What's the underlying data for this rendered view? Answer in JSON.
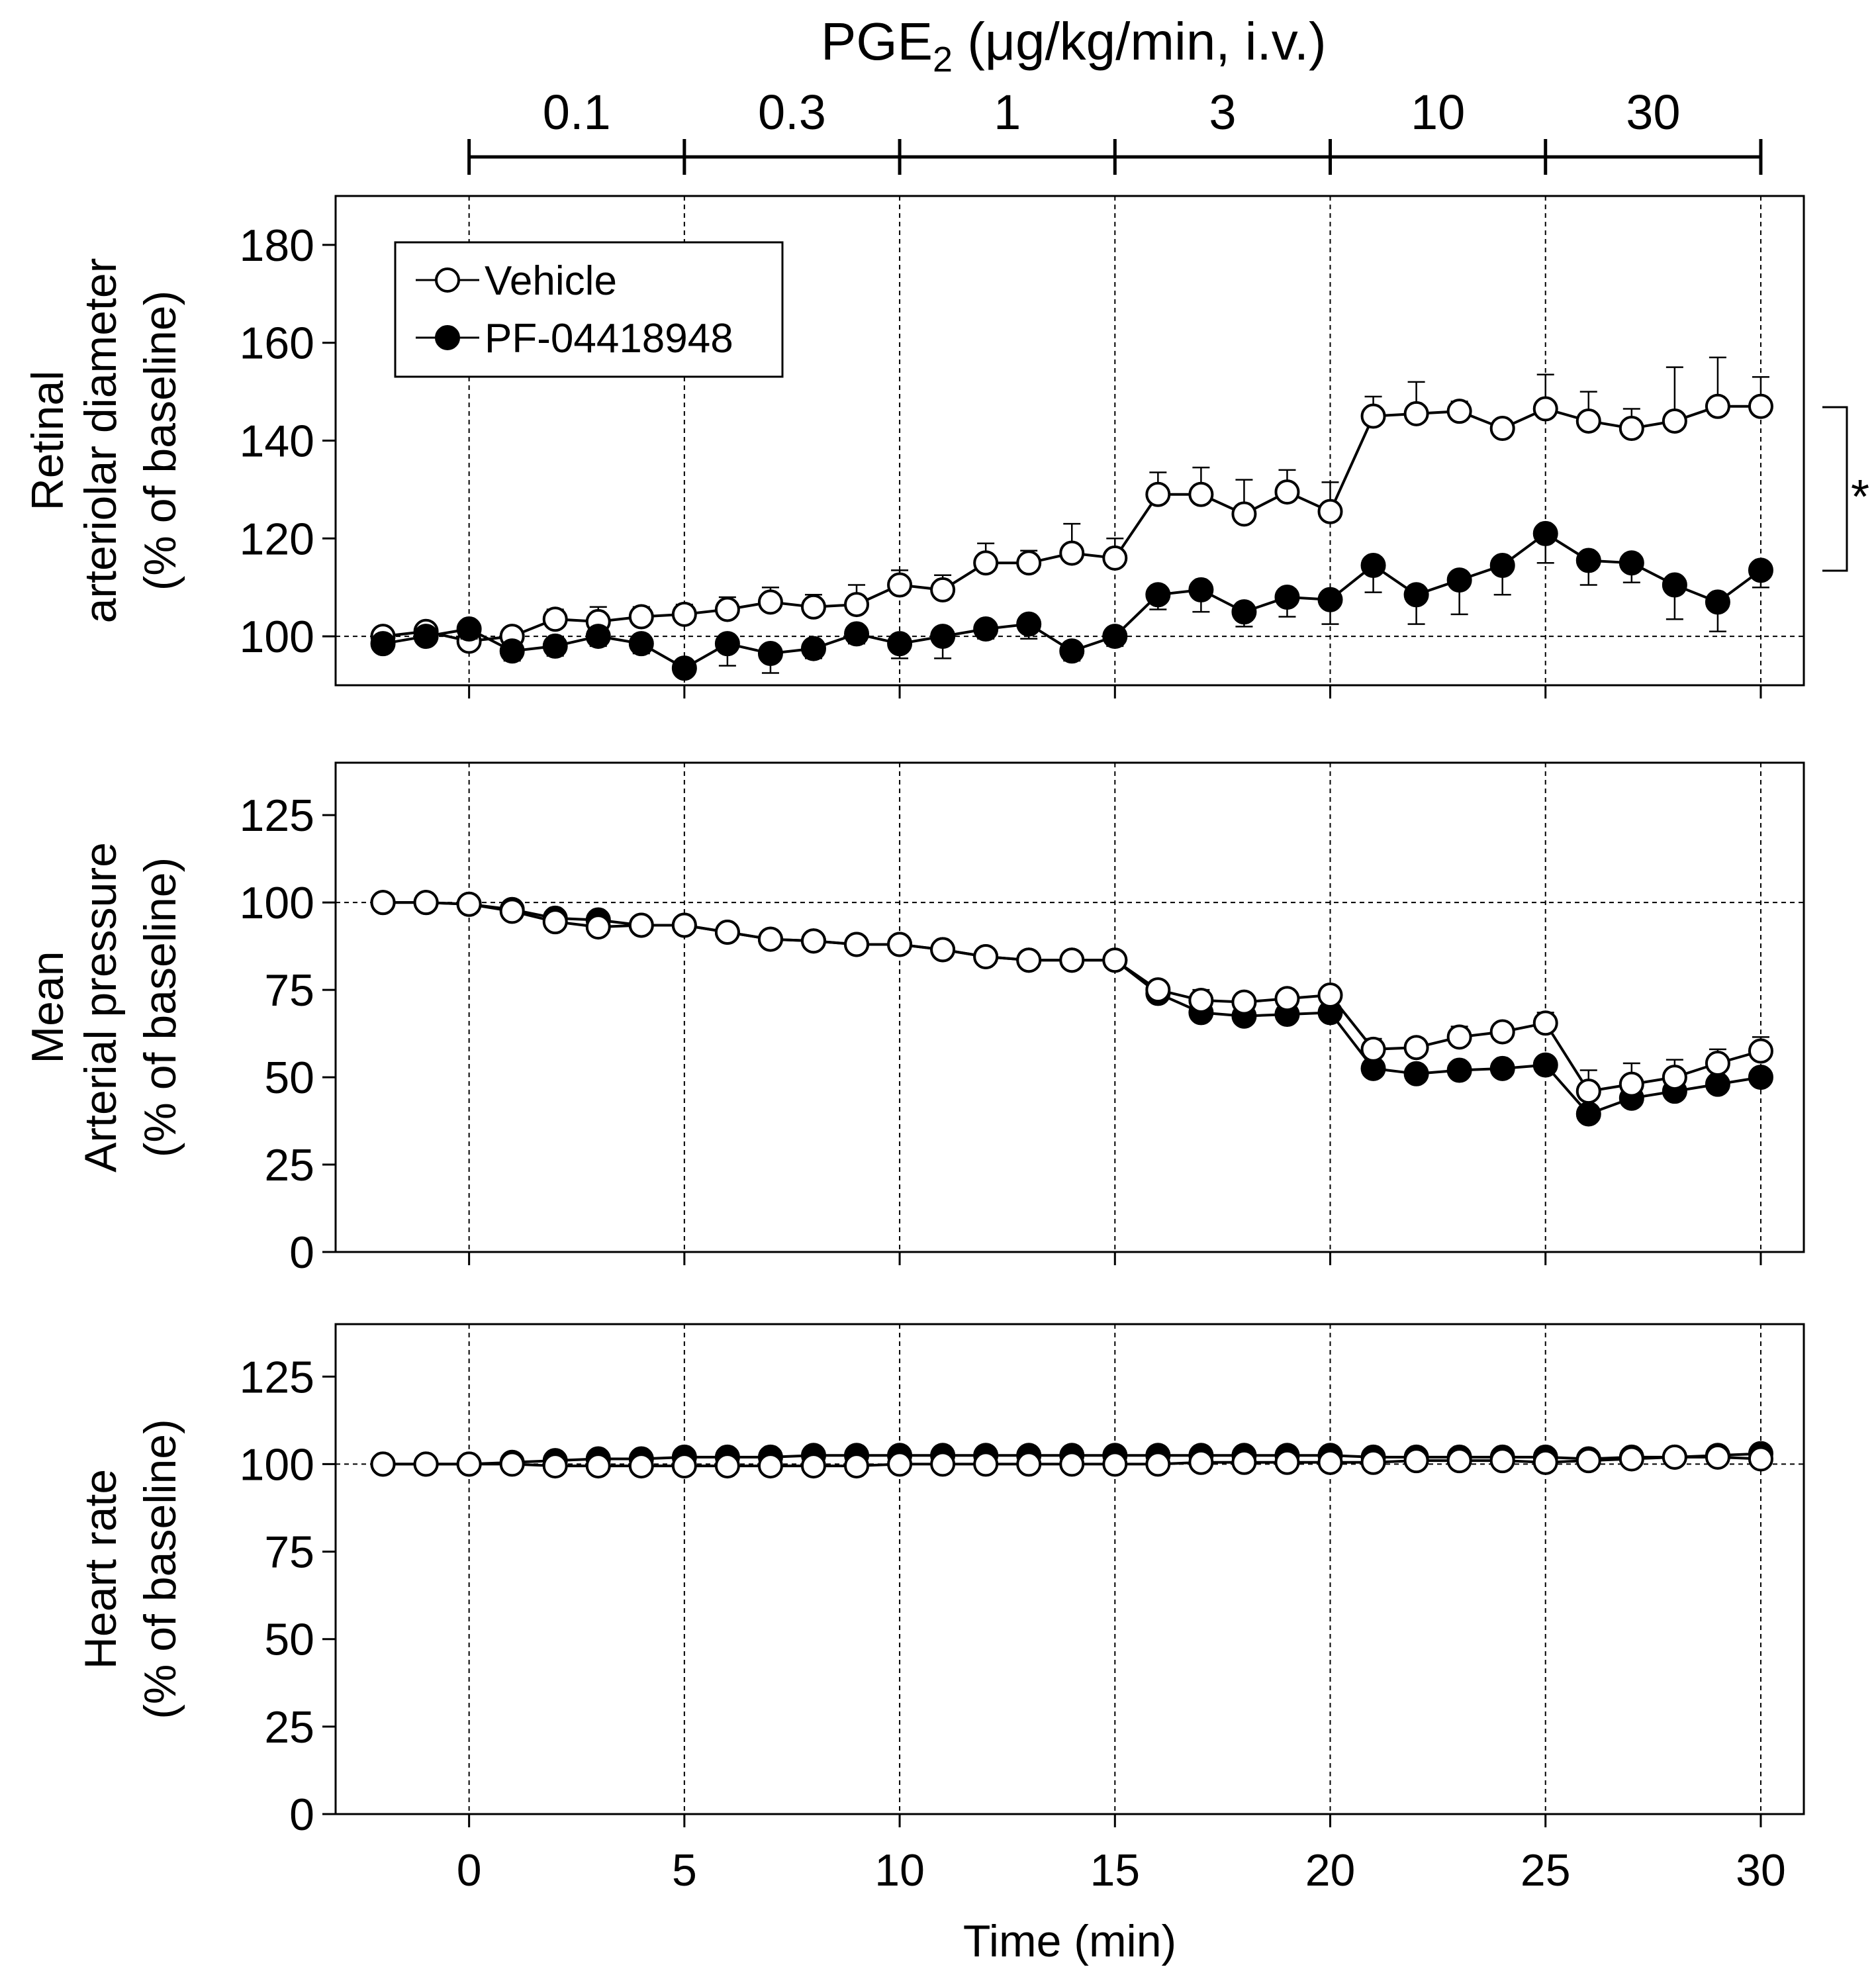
{
  "dose_bar": {
    "title_main": "PGE",
    "title_sub": "2",
    "title_rest": " (μg/kg/min, i.v.)",
    "doses": [
      "0.1",
      "0.3",
      "1",
      "3",
      "10",
      "30"
    ],
    "dose_start_times": [
      0,
      5,
      10,
      15,
      20,
      25,
      30
    ]
  },
  "legend": {
    "vehicle": "Vehicle",
    "pf": "PF-04418948"
  },
  "significance": "*",
  "x_axis": {
    "label": "Time (min)",
    "ticks": [
      0,
      5,
      10,
      15,
      20,
      25,
      30
    ],
    "range": [
      -3.1,
      31
    ]
  },
  "chart_data": [
    {
      "type": "line",
      "title": "Retinal arteriolar diameter",
      "ylabel_lines": [
        "Retinal",
        "arteriolar diameter",
        "(% of baseline)"
      ],
      "ylim": [
        90,
        190
      ],
      "yticks": [
        100,
        120,
        140,
        160,
        180
      ],
      "baseline": 100,
      "x": [
        -2,
        -1,
        0,
        1,
        2,
        3,
        4,
        5,
        6,
        7,
        8,
        9,
        10,
        11,
        12,
        13,
        14,
        15,
        16,
        17,
        18,
        19,
        20,
        21,
        22,
        23,
        24,
        25,
        26,
        27,
        28,
        29,
        30
      ],
      "series": [
        {
          "name": "Vehicle",
          "marker": "open",
          "values": [
            100,
            101,
            99,
            100,
            103.5,
            103,
            104,
            104.5,
            105.5,
            107,
            106,
            106.5,
            110.5,
            109.5,
            115,
            115,
            117,
            116,
            129,
            129,
            125,
            129.5,
            125.5,
            145,
            145.5,
            146,
            142.5,
            146.5,
            144,
            142.5,
            144,
            147,
            147
          ],
          "errors": [
            1,
            1,
            1.5,
            1.5,
            2,
            3,
            2,
            2,
            2.5,
            3,
            2.5,
            4,
            3,
            3,
            4,
            2.5,
            6,
            4,
            4.5,
            5.5,
            7,
            4.5,
            6,
            4,
            6.5,
            2,
            1.5,
            7,
            6,
            4,
            11,
            10,
            6
          ]
        },
        {
          "name": "PF-04418948",
          "marker": "filled",
          "values": [
            98.5,
            100,
            101.5,
            97,
            98,
            100,
            98.5,
            93.5,
            98.5,
            96.5,
            97.5,
            100.5,
            98.5,
            100,
            101.5,
            102.5,
            97,
            100,
            108.5,
            109.5,
            105,
            108,
            107.5,
            114.5,
            108.5,
            111.5,
            114.5,
            121,
            115.5,
            115,
            110.5,
            107,
            113.5
          ],
          "errors": [
            1.5,
            1,
            2,
            2,
            2,
            2,
            2,
            1.5,
            4.5,
            4,
            2,
            2,
            3,
            4.5,
            2,
            3,
            2,
            2,
            3,
            4.5,
            3,
            4,
            5,
            5.5,
            6,
            7,
            6,
            6,
            5,
            4,
            7,
            6,
            3.5
          ]
        }
      ]
    },
    {
      "type": "line",
      "title": "Mean Arterial pressure",
      "ylabel_lines": [
        "Mean",
        "Arterial pressure",
        "(% of baseline)"
      ],
      "ylim": [
        0,
        140
      ],
      "yticks": [
        0,
        25,
        50,
        75,
        100,
        125
      ],
      "baseline": 100,
      "x": [
        -2,
        -1,
        0,
        1,
        2,
        3,
        4,
        5,
        6,
        7,
        8,
        9,
        10,
        11,
        12,
        13,
        14,
        15,
        16,
        17,
        18,
        19,
        20,
        21,
        22,
        23,
        24,
        25,
        26,
        27,
        28,
        29,
        30
      ],
      "series": [
        {
          "name": "PF-04418948",
          "marker": "filled",
          "values": [
            100,
            100,
            99.5,
            98,
            95.5,
            95,
            93.5,
            93.5,
            91.5,
            89.5,
            89,
            88,
            88,
            86.5,
            84.5,
            83.5,
            83.5,
            83.5,
            74,
            68.5,
            67.5,
            68,
            68.5,
            52.5,
            51,
            52,
            52.5,
            53.5,
            39.5,
            44,
            46,
            48,
            50
          ],
          "errors": [
            0,
            0,
            0,
            0,
            0,
            0,
            0,
            0,
            0,
            0,
            0,
            0,
            0,
            0,
            0,
            0,
            0,
            0,
            1.5,
            2,
            2,
            2,
            2,
            2,
            2,
            2,
            2,
            2,
            2,
            2,
            2,
            2,
            2
          ]
        },
        {
          "name": "Vehicle",
          "marker": "open",
          "values": [
            100,
            100,
            99.5,
            97.5,
            94.5,
            93,
            93.5,
            93.5,
            91.5,
            89.5,
            89,
            88,
            88,
            86.5,
            84.5,
            83.5,
            83.5,
            83.5,
            75,
            72,
            71.5,
            72.5,
            73.5,
            58,
            58.5,
            61.5,
            63,
            65.5,
            46,
            48,
            50,
            54,
            57.5
          ],
          "errors": [
            0,
            0,
            0,
            0,
            0,
            0,
            0,
            0,
            0,
            0,
            0,
            0,
            0,
            0,
            0,
            0,
            0,
            0,
            2,
            3,
            2,
            2,
            2,
            3,
            2,
            3,
            2,
            3,
            6,
            6,
            5,
            4,
            4
          ]
        }
      ]
    },
    {
      "type": "line",
      "title": "Heart rate",
      "ylabel_lines": [
        "Heart rate",
        "(% of baseline)"
      ],
      "ylim": [
        0,
        140
      ],
      "yticks": [
        0,
        25,
        50,
        75,
        100,
        125
      ],
      "baseline": 100,
      "x": [
        -2,
        -1,
        0,
        1,
        2,
        3,
        4,
        5,
        6,
        7,
        8,
        9,
        10,
        11,
        12,
        13,
        14,
        15,
        16,
        17,
        18,
        19,
        20,
        21,
        22,
        23,
        24,
        25,
        26,
        27,
        28,
        29,
        30
      ],
      "series": [
        {
          "name": "PF-04418948",
          "marker": "filled",
          "values": [
            100,
            100,
            100,
            100.5,
            101,
            101.5,
            101.5,
            102,
            102,
            102,
            102.5,
            102.5,
            102.5,
            102.5,
            102.5,
            102.5,
            102.5,
            102.5,
            102.5,
            102.5,
            102.5,
            102.5,
            102.5,
            102,
            102,
            102,
            102,
            102,
            101.5,
            102,
            102,
            102.5,
            103
          ],
          "errors": [
            0,
            0,
            0,
            0,
            0,
            0,
            0,
            0,
            0,
            0,
            0,
            0,
            0,
            0,
            0,
            0,
            0,
            0,
            0,
            0,
            0,
            0,
            0,
            0,
            0,
            0,
            0,
            0,
            0,
            0,
            0,
            0,
            0
          ]
        },
        {
          "name": "Vehicle",
          "marker": "open",
          "values": [
            100,
            100,
            100,
            100,
            99.5,
            99.5,
            99.5,
            99.5,
            99.5,
            99.5,
            99.5,
            99.5,
            100,
            100,
            100,
            100,
            100,
            100,
            100,
            100.5,
            100.5,
            100.5,
            100.5,
            100.5,
            101,
            101,
            101,
            100.5,
            101,
            101.5,
            102,
            102,
            101.5
          ],
          "errors": [
            0,
            0,
            0,
            0,
            0,
            0,
            0,
            0,
            0,
            0,
            0,
            0,
            0,
            0,
            0,
            0,
            0,
            0,
            0,
            0,
            0,
            0,
            0,
            0,
            0,
            0,
            0,
            0,
            0,
            0,
            0,
            0,
            0
          ]
        }
      ]
    }
  ]
}
